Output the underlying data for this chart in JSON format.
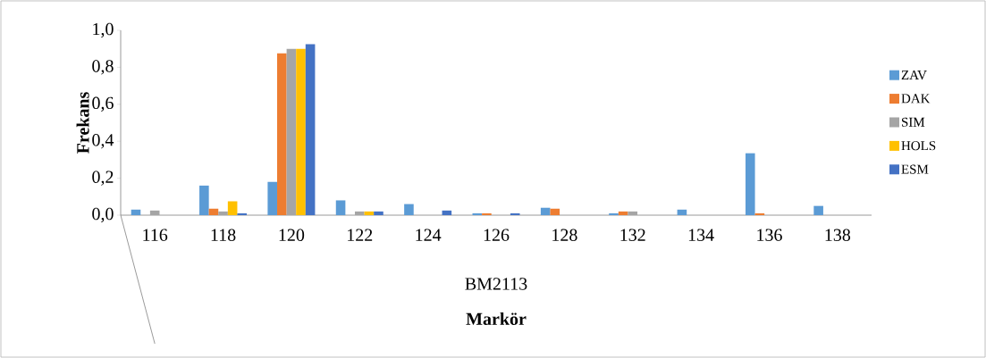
{
  "chart_data": {
    "type": "bar",
    "xlabel": "Markör",
    "ylabel": "Frekans",
    "categories": [
      "116",
      "118",
      "120",
      "122",
      "124",
      "126",
      "128",
      "132",
      "134",
      "136",
      "138"
    ],
    "annotations": [
      "BM2113"
    ],
    "series": [
      {
        "name": "ZAV",
        "color": "#5b9bd5",
        "values": [
          0.03,
          0.16,
          0.18,
          0.08,
          0.06,
          0.01,
          0.04,
          0.01,
          0.03,
          0.335,
          0.05
        ]
      },
      {
        "name": "DAK",
        "color": "#ed7d31",
        "values": [
          0,
          0.035,
          0.875,
          0,
          0,
          0.01,
          0.035,
          0.02,
          0,
          0.01,
          0
        ]
      },
      {
        "name": "SIM",
        "color": "#a5a5a5",
        "values": [
          0.025,
          0.02,
          0.9,
          0.02,
          0,
          0,
          0,
          0.02,
          0,
          0,
          0
        ]
      },
      {
        "name": "HOLS",
        "color": "#ffc000",
        "values": [
          0,
          0.075,
          0.9,
          0.02,
          0,
          0,
          0,
          0,
          0,
          0,
          0
        ]
      },
      {
        "name": "ESM",
        "color": "#4472c4",
        "values": [
          0,
          0.01,
          0.925,
          0.02,
          0.025,
          0.01,
          0,
          0,
          0,
          0,
          0
        ]
      }
    ],
    "ylim": [
      0,
      1.0
    ],
    "yticks": [
      {
        "value": 0,
        "label": "0,0"
      },
      {
        "value": 0.2,
        "label": "0,2"
      },
      {
        "value": 0.4,
        "label": "0,4"
      },
      {
        "value": 0.6,
        "label": "0,6"
      },
      {
        "value": 0.8,
        "label": "0,8"
      },
      {
        "value": 1.0,
        "label": "1,0"
      }
    ],
    "grid": false,
    "legend": "right"
  }
}
